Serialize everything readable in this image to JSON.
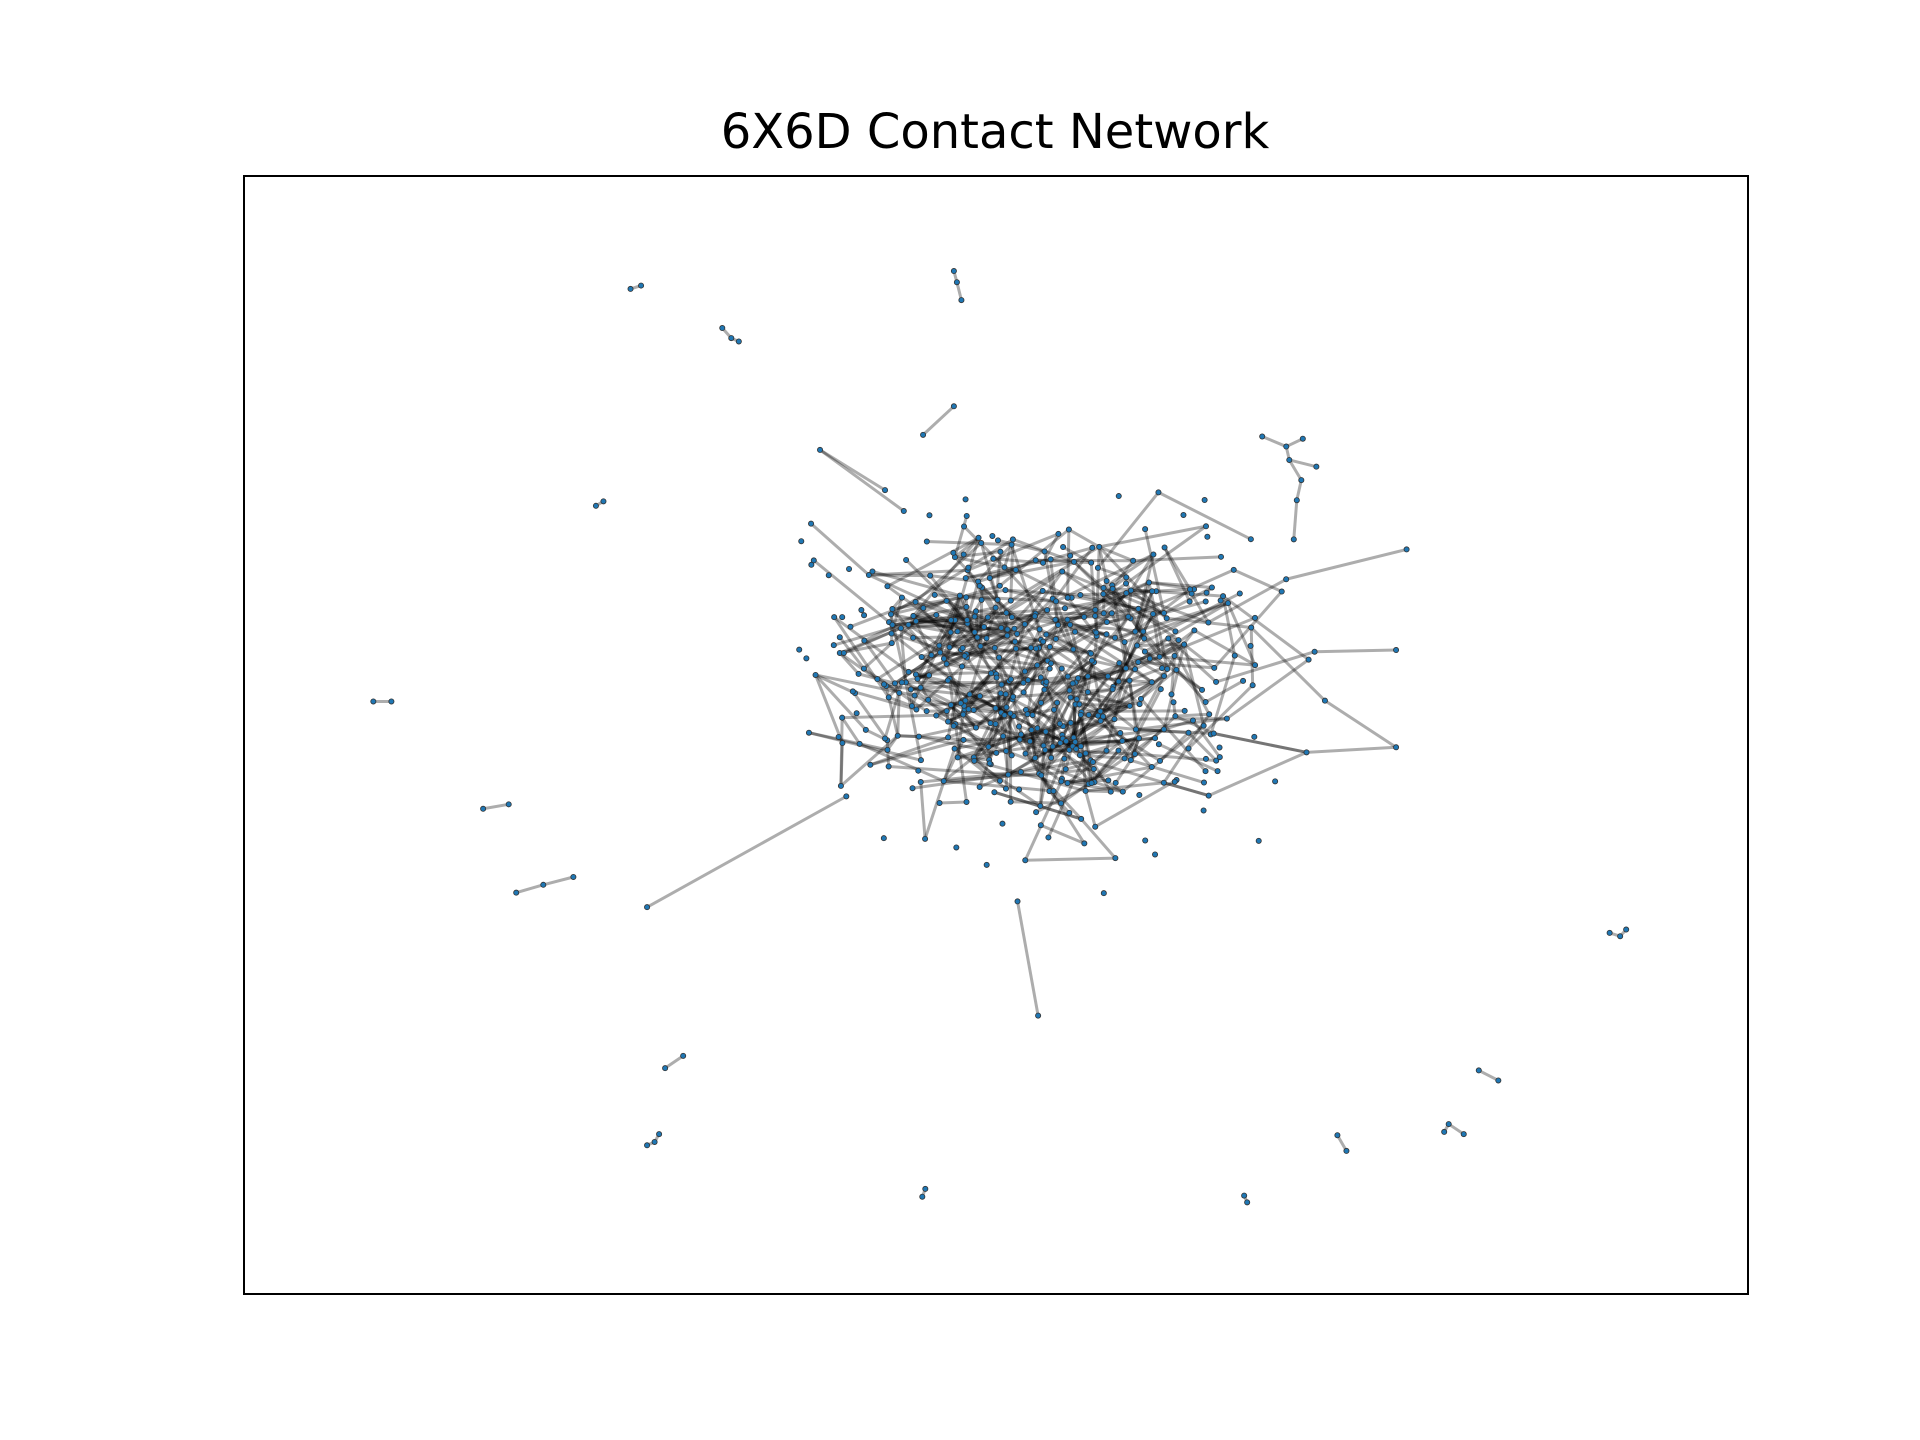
{
  "figure": {
    "title": "6X6D Contact Network"
  },
  "style": {
    "node_color": "#1f77b4",
    "node_edge_color": "#333333",
    "edge_color": "#000000",
    "edge_alpha": 0.32
  },
  "chart_data": {
    "type": "network",
    "title": "6X6D Contact Network",
    "xlim": [
      0,
      100
    ],
    "ylim": [
      0,
      100
    ],
    "grid": false,
    "axis_ticks": false,
    "components": [
      {
        "id": "c1",
        "nodes": [
          [
            25.7,
            89.9
          ],
          [
            26.4,
            90.2
          ]
        ],
        "edges": [
          [
            0,
            1
          ]
        ]
      },
      {
        "id": "c2",
        "nodes": [
          [
            31.8,
            86.4
          ],
          [
            32.4,
            85.5
          ],
          [
            32.9,
            85.2
          ]
        ],
        "edges": [
          [
            0,
            1
          ],
          [
            1,
            2
          ]
        ]
      },
      {
        "id": "c3",
        "nodes": [
          [
            47.2,
            91.5
          ],
          [
            47.4,
            90.5
          ],
          [
            47.7,
            88.9
          ]
        ],
        "edges": [
          [
            0,
            1
          ],
          [
            1,
            2
          ]
        ]
      },
      {
        "id": "c4",
        "nodes": [
          [
            23.4,
            70.5
          ],
          [
            23.9,
            70.9
          ]
        ],
        "edges": [
          [
            0,
            1
          ]
        ]
      },
      {
        "id": "c5",
        "nodes": [
          [
            8.6,
            53.0
          ],
          [
            9.8,
            53.0
          ]
        ],
        "edges": [
          [
            0,
            1
          ]
        ]
      },
      {
        "id": "c6",
        "nodes": [
          [
            15.9,
            43.4
          ],
          [
            17.6,
            43.8
          ]
        ],
        "edges": [
          [
            0,
            1
          ]
        ]
      },
      {
        "id": "c7",
        "nodes": [
          [
            18.1,
            35.9
          ],
          [
            19.9,
            36.6
          ],
          [
            21.9,
            37.3
          ]
        ],
        "edges": [
          [
            0,
            1
          ],
          [
            1,
            2
          ]
        ]
      },
      {
        "id": "c8",
        "nodes": [
          [
            28.0,
            20.2
          ],
          [
            29.2,
            21.3
          ]
        ],
        "edges": [
          [
            0,
            1
          ]
        ]
      },
      {
        "id": "c9",
        "nodes": [
          [
            26.8,
            13.3
          ],
          [
            27.3,
            13.6
          ],
          [
            27.6,
            14.3
          ]
        ],
        "edges": [
          [
            0,
            1
          ],
          [
            1,
            2
          ]
        ]
      },
      {
        "id": "c10",
        "nodes": [
          [
            45.1,
            8.7
          ],
          [
            45.3,
            9.4
          ]
        ],
        "edges": [
          [
            0,
            1
          ]
        ]
      },
      {
        "id": "c11",
        "nodes": [
          [
            66.5,
            8.8
          ],
          [
            66.7,
            8.2
          ]
        ],
        "edges": [
          [
            0,
            1
          ]
        ]
      },
      {
        "id": "c12",
        "nodes": [
          [
            72.7,
            14.2
          ],
          [
            73.3,
            12.8
          ]
        ],
        "edges": [
          [
            0,
            1
          ]
        ]
      },
      {
        "id": "c13",
        "nodes": [
          [
            79.8,
            14.5
          ],
          [
            80.1,
            15.2
          ],
          [
            81.1,
            14.3
          ]
        ],
        "edges": [
          [
            0,
            1
          ],
          [
            1,
            2
          ]
        ]
      },
      {
        "id": "c14",
        "nodes": [
          [
            82.1,
            20.0
          ],
          [
            83.4,
            19.1
          ]
        ],
        "edges": [
          [
            0,
            1
          ]
        ]
      },
      {
        "id": "c15",
        "nodes": [
          [
            90.8,
            32.3
          ],
          [
            91.5,
            32.0
          ],
          [
            91.9,
            32.6
          ]
        ],
        "edges": [
          [
            0,
            1
          ],
          [
            1,
            2
          ]
        ]
      },
      {
        "id": "c16",
        "nodes": [
          [
            67.7,
            76.7
          ],
          [
            69.3,
            75.8
          ],
          [
            70.4,
            76.5
          ],
          [
            69.5,
            74.6
          ],
          [
            70.3,
            72.8
          ],
          [
            71.3,
            74.0
          ],
          [
            70.0,
            71.0
          ],
          [
            69.8,
            67.5
          ]
        ],
        "edges": [
          [
            0,
            1
          ],
          [
            1,
            2
          ],
          [
            1,
            3
          ],
          [
            3,
            4
          ],
          [
            3,
            5
          ],
          [
            4,
            6
          ],
          [
            6,
            7
          ]
        ]
      }
    ],
    "core": {
      "node_count": 520,
      "edge_count": 900,
      "center": [
        53.5,
        55.5
      ],
      "spread": [
        12.0,
        11.0
      ],
      "seed": 6
    }
  }
}
